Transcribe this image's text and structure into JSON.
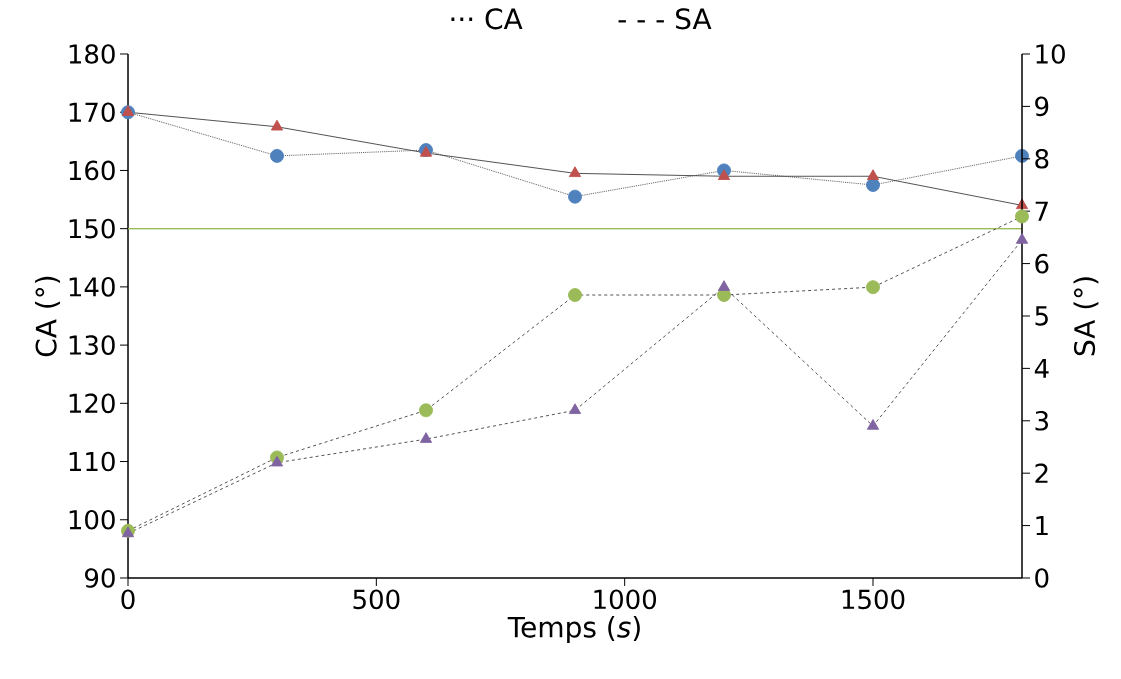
{
  "chart_data": {
    "type": "line",
    "xlabel": "Temps (*s*)",
    "ylabel": "CA (°)",
    "y2label": "SA (°)",
    "x": [
      0,
      300,
      600,
      900,
      1200,
      1500,
      1800
    ],
    "xlim": [
      0,
      1800
    ],
    "xticks": [
      0,
      500,
      1000,
      1500
    ],
    "ylim": [
      90,
      180
    ],
    "yticks": [
      90,
      100,
      110,
      120,
      130,
      140,
      150,
      160,
      170,
      180
    ],
    "y2lim": [
      0,
      10
    ],
    "y2ticks": [
      0,
      1,
      2,
      3,
      4,
      5,
      6,
      7,
      8,
      9,
      10
    ],
    "annotations": [
      "··· CA",
      "- - - SA"
    ],
    "grid": false,
    "ref_lines": [
      {
        "axis": "y",
        "value": 150,
        "color": "#9bbb59"
      }
    ],
    "series": [
      {
        "color": "#4f81bd",
        "marker": "circle",
        "line_style": "dotted",
        "values": [
          170,
          162.5,
          163.5,
          155.5,
          160,
          157.5,
          162.5
        ]
      },
      {
        "color": "#c0504d",
        "marker": "triangle",
        "line_style": "solid",
        "values": [
          170,
          167.5,
          163,
          159.5,
          159,
          159,
          154
        ]
      },
      {
        "color": "#9bbb59",
        "marker": "circle",
        "line_style": "dashed",
        "axis": "y2",
        "values": [
          0.9,
          2.3,
          3.2,
          5.4,
          5.4,
          5.55,
          6.9
        ]
      },
      {
        "color": "#8064a2",
        "marker": "triangle",
        "line_style": "dashed",
        "axis": "y2",
        "values": [
          0.85,
          2.2,
          2.65,
          3.2,
          5.55,
          2.9,
          6.45
        ]
      }
    ]
  }
}
